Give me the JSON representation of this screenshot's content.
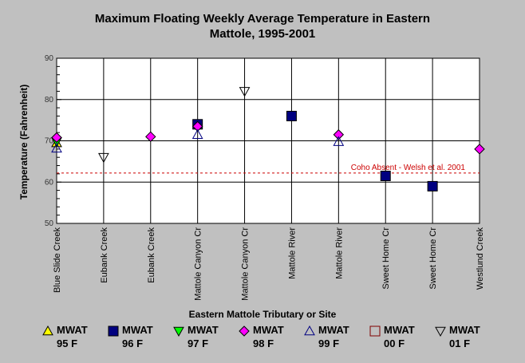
{
  "chart_data": {
    "type": "scatter",
    "title_lines": [
      "Maximum Floating Weekly Average Temperature in Eastern",
      "Mattole, 1995-2001"
    ],
    "xlabel": "Eastern Mattole Tributary or Site",
    "ylabel": "Temperature (Fahrenheit)",
    "ylim": [
      50,
      90
    ],
    "yticks": [
      50,
      60,
      70,
      80,
      90
    ],
    "grid": true,
    "categories": [
      "Blue Slide Creek",
      "Eubank Creek",
      "Eubank Creek",
      "Mattole Canyon Cr",
      "Mattole Canyon Cr",
      "Mattole River",
      "Mattole River",
      "Sweet Home Cr",
      "Sweet Home Cr",
      "Westlund Creek"
    ],
    "series": [
      {
        "name": "MWAT",
        "sub": "95 F",
        "marker": "triangle-up",
        "color": "#ffff00",
        "points": [
          [
            0,
            69.5
          ]
        ]
      },
      {
        "name": "MWAT",
        "sub": "96 F",
        "marker": "square",
        "color": "#000080",
        "points": [
          [
            3,
            74.0
          ],
          [
            5,
            76.0
          ],
          [
            7,
            61.5
          ],
          [
            8,
            59.0
          ]
        ]
      },
      {
        "name": "MWAT",
        "sub": "97 F",
        "marker": "triangle-down",
        "color": "#00ff00",
        "points": [
          [
            0,
            69.8
          ]
        ]
      },
      {
        "name": "MWAT",
        "sub": "98 F",
        "marker": "diamond",
        "color": "#ff00ff",
        "points": [
          [
            0,
            70.8
          ],
          [
            2,
            71.0
          ],
          [
            3,
            73.5
          ],
          [
            6,
            71.5
          ],
          [
            9,
            68.0
          ]
        ]
      },
      {
        "name": "MWAT",
        "sub": "99 F",
        "marker": "triangle-up-open",
        "color": "#000080",
        "points": [
          [
            0,
            68.2
          ],
          [
            3,
            71.5
          ],
          [
            6,
            69.8
          ]
        ]
      },
      {
        "name": "MWAT",
        "sub": "00 F",
        "marker": "square-open",
        "color": "#800000",
        "points": []
      },
      {
        "name": "MWAT",
        "sub": "01 F",
        "marker": "triangle-down-open",
        "color": "#000000",
        "points": [
          [
            1,
            66.0
          ],
          [
            4,
            82.0
          ]
        ]
      }
    ],
    "reference_line": {
      "y": 62.2,
      "label": "Coho Absent - Welsh et al. 2001",
      "color": "#cc0000"
    }
  }
}
